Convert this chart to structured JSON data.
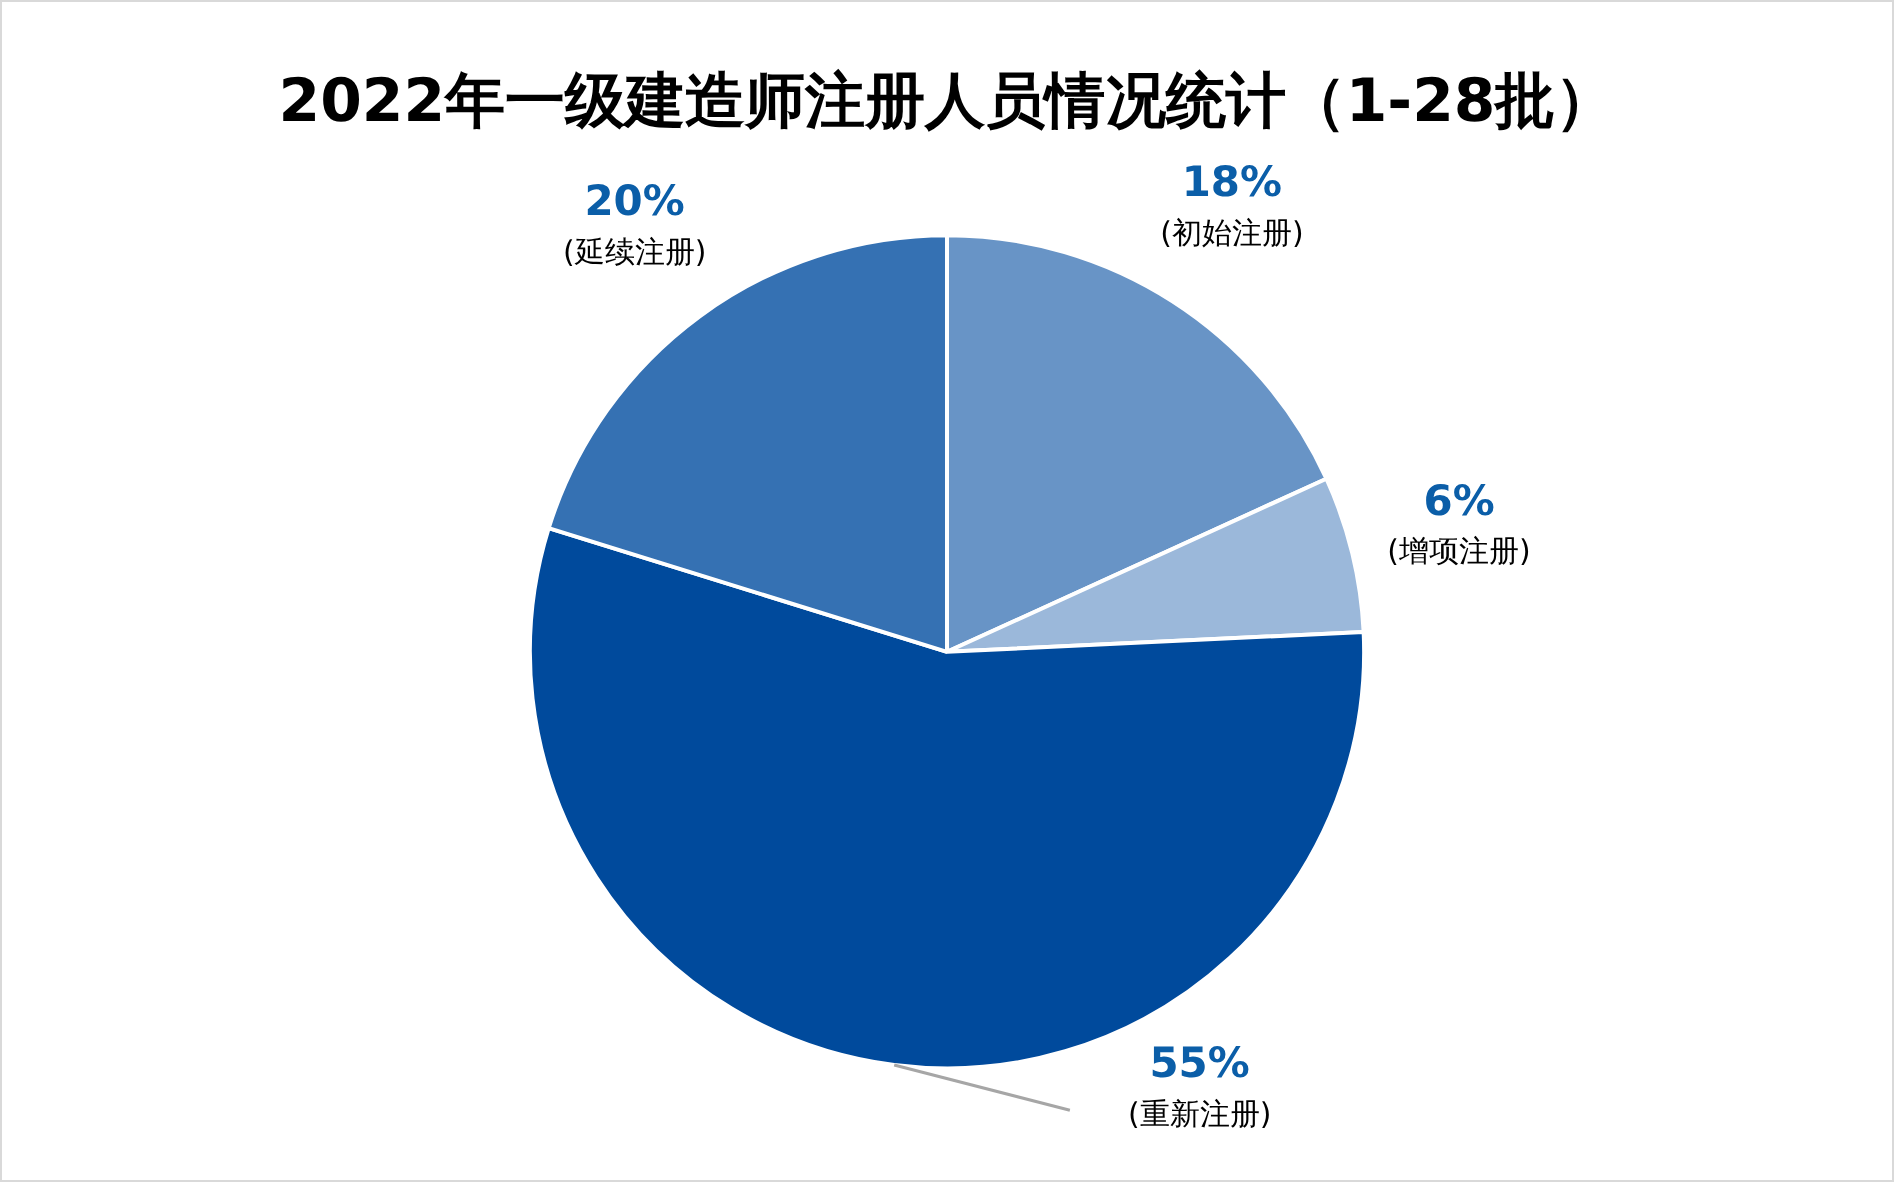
{
  "chart_data": {
    "type": "pie",
    "title": "2022年一级建造师注册人员情况统计（1-28批）",
    "categories": [
      "(初始注册)",
      "(增项注册)",
      "(重新注册)",
      "(延续注册)"
    ],
    "values": [
      18,
      6,
      55,
      20
    ],
    "value_labels": [
      "18%",
      "6%",
      "55%",
      "20%"
    ],
    "colors": [
      "#6894c6",
      "#9bb8da",
      "#004a9c",
      "#3571b3"
    ],
    "legend": false
  }
}
